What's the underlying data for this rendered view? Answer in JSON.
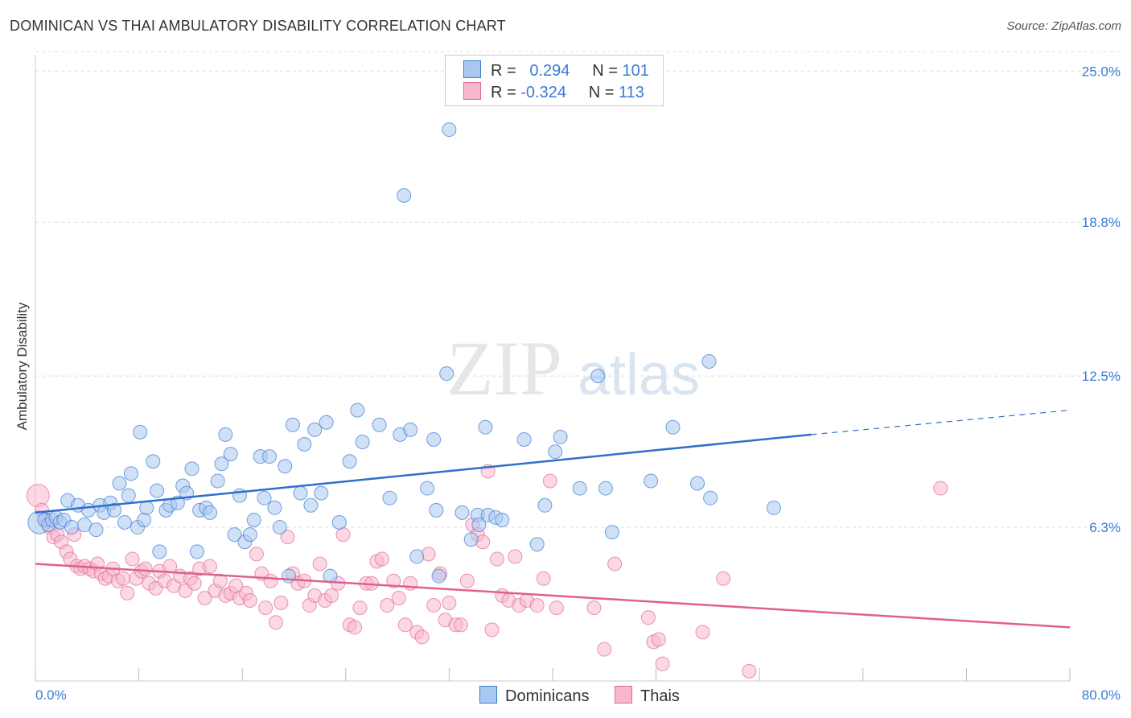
{
  "title": "DOMINICAN VS THAI AMBULATORY DISABILITY CORRELATION CHART",
  "source": "Source: ZipAtlas.com",
  "watermark": {
    "zip": "ZIP",
    "atlas": "atlas"
  },
  "legend": {
    "dominicans": {
      "r_label": "R =",
      "r_value": "0.294",
      "n_label": "N =",
      "n_value": "101",
      "color": "#a9c8ef",
      "stroke": "#3a7bd5"
    },
    "thais": {
      "r_label": "R =",
      "r_value": "-0.324",
      "n_label": "N =",
      "n_value": "113",
      "color": "#f7b8cc",
      "stroke": "#e06b93"
    }
  },
  "bottom_legend": {
    "dominicans": "Dominicans",
    "thais": "Thais"
  },
  "chart_data": {
    "type": "scatter",
    "title": "DOMINICAN VS THAI AMBULATORY DISABILITY CORRELATION CHART",
    "ylabel": "Ambulatory Disability",
    "xlabel": "",
    "x_tick_labels": [
      "0.0%",
      "80.0%"
    ],
    "y_tick_labels": [
      "6.3%",
      "12.5%",
      "18.8%",
      "25.0%"
    ],
    "y_ticks": [
      6.3,
      12.5,
      18.8,
      25.0
    ],
    "xlim": [
      0,
      80
    ],
    "ylim": [
      0,
      26
    ],
    "grid": true,
    "legend_position": "top-center",
    "series": [
      {
        "name": "Dominicans",
        "color": "#3a7bd5",
        "fill": "#a9c8ef",
        "trend": {
          "x0": 0,
          "y0": 6.9,
          "x1": 60,
          "y1": 10.1,
          "dashed_to_x": 80,
          "dashed_to_y": 11.1
        },
        "points": [
          [
            0.3,
            6.5
          ],
          [
            0.7,
            6.6
          ],
          [
            1.0,
            6.4
          ],
          [
            1.3,
            6.6
          ],
          [
            1.6,
            6.7
          ],
          [
            1.9,
            6.5
          ],
          [
            2.2,
            6.6
          ],
          [
            2.5,
            7.4
          ],
          [
            2.8,
            6.3
          ],
          [
            3.3,
            7.2
          ],
          [
            3.8,
            6.4
          ],
          [
            4.1,
            7.0
          ],
          [
            4.7,
            6.2
          ],
          [
            5.0,
            7.2
          ],
          [
            5.3,
            6.9
          ],
          [
            5.8,
            7.3
          ],
          [
            6.1,
            7.0
          ],
          [
            6.5,
            8.1
          ],
          [
            6.9,
            6.5
          ],
          [
            7.2,
            7.6
          ],
          [
            7.4,
            8.5
          ],
          [
            7.9,
            6.3
          ],
          [
            8.1,
            10.2
          ],
          [
            8.4,
            6.6
          ],
          [
            8.6,
            7.1
          ],
          [
            9.1,
            9.0
          ],
          [
            9.4,
            7.8
          ],
          [
            9.6,
            5.3
          ],
          [
            10.1,
            7.0
          ],
          [
            10.4,
            7.2
          ],
          [
            11.0,
            7.3
          ],
          [
            11.4,
            8.0
          ],
          [
            11.7,
            7.7
          ],
          [
            12.1,
            8.7
          ],
          [
            12.5,
            5.3
          ],
          [
            12.7,
            7.0
          ],
          [
            13.2,
            7.1
          ],
          [
            13.5,
            6.9
          ],
          [
            14.1,
            8.2
          ],
          [
            14.4,
            8.9
          ],
          [
            14.7,
            10.1
          ],
          [
            15.1,
            9.3
          ],
          [
            15.4,
            6.0
          ],
          [
            15.8,
            7.6
          ],
          [
            16.2,
            5.7
          ],
          [
            16.6,
            6.0
          ],
          [
            16.9,
            6.6
          ],
          [
            17.4,
            9.2
          ],
          [
            17.7,
            7.5
          ],
          [
            18.1,
            9.2
          ],
          [
            18.5,
            7.1
          ],
          [
            18.9,
            6.3
          ],
          [
            19.3,
            8.8
          ],
          [
            19.6,
            4.3
          ],
          [
            19.9,
            10.5
          ],
          [
            20.5,
            7.7
          ],
          [
            20.8,
            9.7
          ],
          [
            21.3,
            7.2
          ],
          [
            21.6,
            10.3
          ],
          [
            22.1,
            7.7
          ],
          [
            22.5,
            10.6
          ],
          [
            22.8,
            4.3
          ],
          [
            23.5,
            6.5
          ],
          [
            24.3,
            9.0
          ],
          [
            24.9,
            11.1
          ],
          [
            25.3,
            9.8
          ],
          [
            26.6,
            10.5
          ],
          [
            27.4,
            7.5
          ],
          [
            28.2,
            10.1
          ],
          [
            29.0,
            10.3
          ],
          [
            29.5,
            5.1
          ],
          [
            30.3,
            7.9
          ],
          [
            30.8,
            9.9
          ],
          [
            31.0,
            7.0
          ],
          [
            31.2,
            4.3
          ],
          [
            31.8,
            12.6
          ],
          [
            32.0,
            22.6
          ],
          [
            33.0,
            6.9
          ],
          [
            33.7,
            5.8
          ],
          [
            34.2,
            6.8
          ],
          [
            34.8,
            10.4
          ],
          [
            35.0,
            6.8
          ],
          [
            34.3,
            6.4
          ],
          [
            35.6,
            6.7
          ],
          [
            36.1,
            6.6
          ],
          [
            37.8,
            9.9
          ],
          [
            38.8,
            5.6
          ],
          [
            39.4,
            7.2
          ],
          [
            40.2,
            9.4
          ],
          [
            40.6,
            10.0
          ],
          [
            42.1,
            7.9
          ],
          [
            43.5,
            12.5
          ],
          [
            44.1,
            7.9
          ],
          [
            44.6,
            6.1
          ],
          [
            47.6,
            8.2
          ],
          [
            49.3,
            10.4
          ],
          [
            51.2,
            8.1
          ],
          [
            52.2,
            7.5
          ],
          [
            52.1,
            13.1
          ],
          [
            57.1,
            7.1
          ],
          [
            28.5,
            19.9
          ]
        ]
      },
      {
        "name": "Thais",
        "color": "#e06b93",
        "fill": "#f7b8cc",
        "trend": {
          "x0": 0,
          "y0": 4.8,
          "x1": 80,
          "y1": 2.2
        },
        "points": [
          [
            0.2,
            7.6
          ],
          [
            0.5,
            7.0
          ],
          [
            0.8,
            6.6
          ],
          [
            1.1,
            6.3
          ],
          [
            1.4,
            5.9
          ],
          [
            1.7,
            6.0
          ],
          [
            2.0,
            5.7
          ],
          [
            2.4,
            5.3
          ],
          [
            2.7,
            5.0
          ],
          [
            3.0,
            6.0
          ],
          [
            3.2,
            4.7
          ],
          [
            3.5,
            4.6
          ],
          [
            3.8,
            4.7
          ],
          [
            4.2,
            4.6
          ],
          [
            4.5,
            4.5
          ],
          [
            4.8,
            4.8
          ],
          [
            5.1,
            4.4
          ],
          [
            5.4,
            4.2
          ],
          [
            5.7,
            4.3
          ],
          [
            6.0,
            4.6
          ],
          [
            6.4,
            4.1
          ],
          [
            6.8,
            4.2
          ],
          [
            7.1,
            3.6
          ],
          [
            7.5,
            5.0
          ],
          [
            7.8,
            4.2
          ],
          [
            8.2,
            4.5
          ],
          [
            8.5,
            4.6
          ],
          [
            8.8,
            4.0
          ],
          [
            9.3,
            3.8
          ],
          [
            9.6,
            4.5
          ],
          [
            10.0,
            4.1
          ],
          [
            10.4,
            4.7
          ],
          [
            10.7,
            3.9
          ],
          [
            11.2,
            4.3
          ],
          [
            11.6,
            3.7
          ],
          [
            12.0,
            4.2
          ],
          [
            12.3,
            4.0
          ],
          [
            12.7,
            4.6
          ],
          [
            13.1,
            3.4
          ],
          [
            13.5,
            4.7
          ],
          [
            13.9,
            3.7
          ],
          [
            14.3,
            4.1
          ],
          [
            14.7,
            3.5
          ],
          [
            15.1,
            3.6
          ],
          [
            15.5,
            3.9
          ],
          [
            15.8,
            3.4
          ],
          [
            16.3,
            3.6
          ],
          [
            16.6,
            3.3
          ],
          [
            17.1,
            5.2
          ],
          [
            17.5,
            4.4
          ],
          [
            17.8,
            3.0
          ],
          [
            18.2,
            4.1
          ],
          [
            18.6,
            2.4
          ],
          [
            19.0,
            3.2
          ],
          [
            19.5,
            5.9
          ],
          [
            19.9,
            4.4
          ],
          [
            20.3,
            4.0
          ],
          [
            20.8,
            4.1
          ],
          [
            21.2,
            3.1
          ],
          [
            21.6,
            3.5
          ],
          [
            22.0,
            4.8
          ],
          [
            22.4,
            3.3
          ],
          [
            22.9,
            3.5
          ],
          [
            23.4,
            4.0
          ],
          [
            23.8,
            6.0
          ],
          [
            24.3,
            2.3
          ],
          [
            24.7,
            2.2
          ],
          [
            25.1,
            3.0
          ],
          [
            25.6,
            4.0
          ],
          [
            26.0,
            4.0
          ],
          [
            26.4,
            4.9
          ],
          [
            26.8,
            5.0
          ],
          [
            27.2,
            3.1
          ],
          [
            27.7,
            4.1
          ],
          [
            28.1,
            3.4
          ],
          [
            28.6,
            2.3
          ],
          [
            29.0,
            4.0
          ],
          [
            29.5,
            2.0
          ],
          [
            29.9,
            1.8
          ],
          [
            30.4,
            5.2
          ],
          [
            30.8,
            3.1
          ],
          [
            31.3,
            4.4
          ],
          [
            31.7,
            2.5
          ],
          [
            32.0,
            3.2
          ],
          [
            32.5,
            2.3
          ],
          [
            32.9,
            2.3
          ],
          [
            33.4,
            4.1
          ],
          [
            33.8,
            6.4
          ],
          [
            34.2,
            6.0
          ],
          [
            34.6,
            5.7
          ],
          [
            35.0,
            8.6
          ],
          [
            35.3,
            2.1
          ],
          [
            35.7,
            5.0
          ],
          [
            36.1,
            3.5
          ],
          [
            36.6,
            3.3
          ],
          [
            37.1,
            5.1
          ],
          [
            37.4,
            3.1
          ],
          [
            38.0,
            3.3
          ],
          [
            38.8,
            3.1
          ],
          [
            39.3,
            4.2
          ],
          [
            39.8,
            8.2
          ],
          [
            40.3,
            3.0
          ],
          [
            43.2,
            3.0
          ],
          [
            44.0,
            1.3
          ],
          [
            44.8,
            4.8
          ],
          [
            47.4,
            2.6
          ],
          [
            47.8,
            1.6
          ],
          [
            48.2,
            1.7
          ],
          [
            48.5,
            0.7
          ],
          [
            51.6,
            2.0
          ],
          [
            53.2,
            4.2
          ],
          [
            55.2,
            0.4
          ],
          [
            70.0,
            7.9
          ]
        ]
      }
    ]
  }
}
